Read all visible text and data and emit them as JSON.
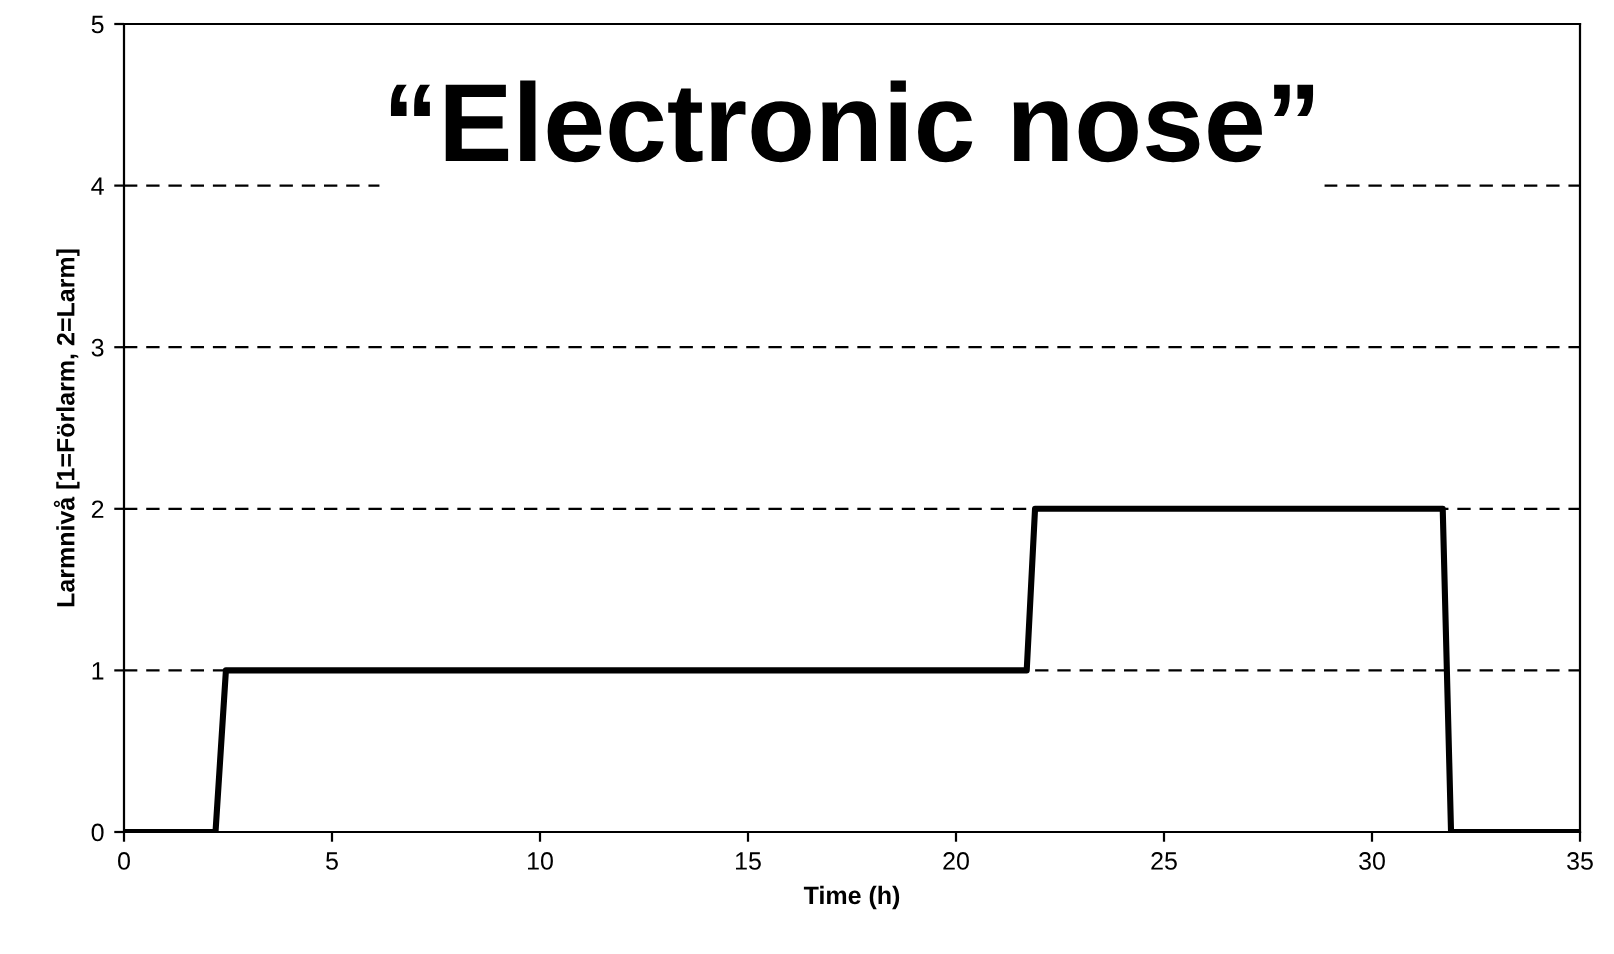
{
  "chart_data": {
    "type": "line",
    "title": "“Electronic nose”",
    "xlabel": "Time (h)",
    "ylabel": "Larmnivå [1=Förlarm, 2=Larm]",
    "series": [
      {
        "color": "#000000",
        "x": [
          0,
          2.2,
          2.45,
          21.7,
          21.9,
          31.7,
          31.9,
          35
        ],
        "values": [
          0,
          0,
          1,
          1,
          2,
          2,
          0,
          0
        ]
      }
    ],
    "xlim": [
      0,
      35
    ],
    "xticks": [
      0,
      5,
      10,
      15,
      20,
      25,
      30,
      35
    ],
    "ylim": [
      0,
      5
    ],
    "yticks": [
      0,
      1,
      2,
      3,
      4,
      5
    ],
    "grid": "y",
    "marker": "none",
    "line_style": "solid"
  }
}
